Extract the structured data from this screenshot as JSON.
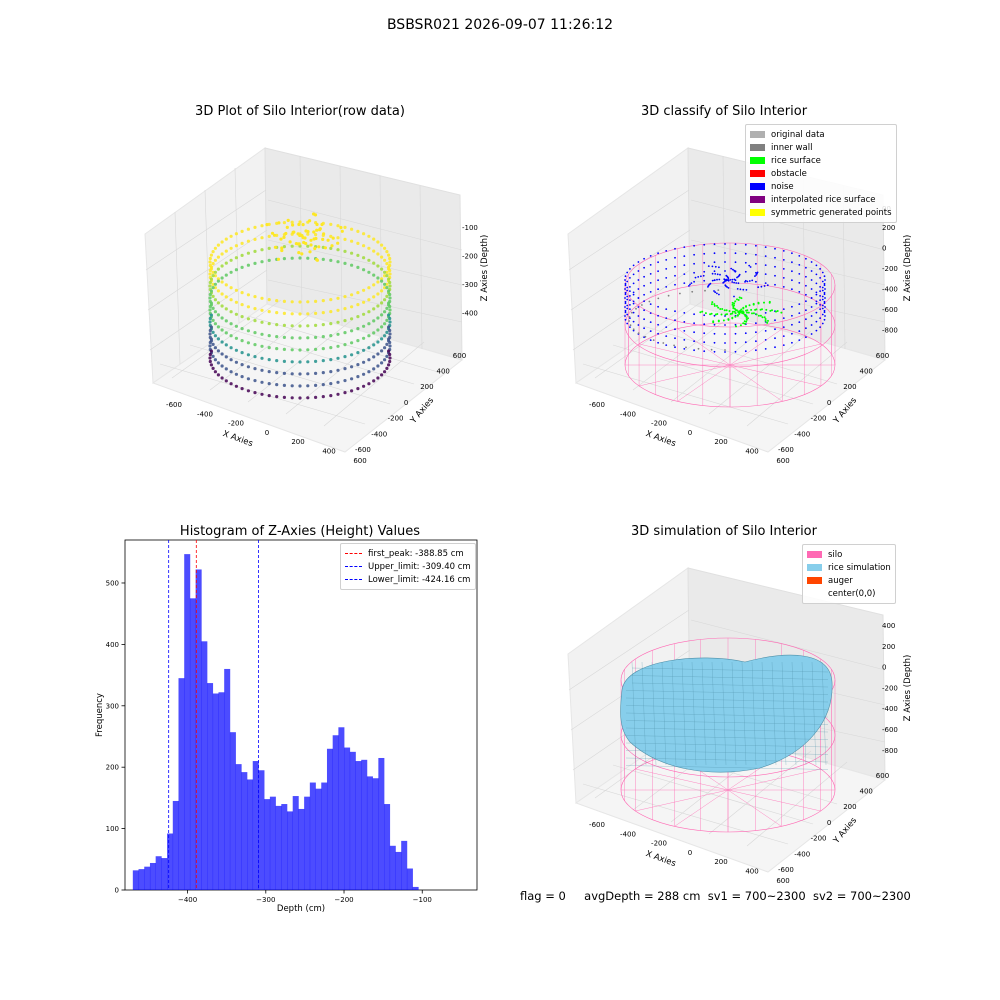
{
  "suptitle": "BSBSR021 2026-09-07 11:26:12",
  "panels": {
    "raw": {
      "title": "3D Plot of Silo Interior(row data)",
      "xlabel": "X Axies",
      "ylabel": "Y Axies",
      "zlabel": "Z Axies (Depth)",
      "xticks": [
        "-600",
        "-400",
        "-200",
        "0",
        "200",
        "400",
        "600"
      ],
      "yticks": [
        "-600",
        "-400",
        "-200",
        "0",
        "200",
        "400",
        "600"
      ],
      "zticks": [
        "-100",
        "-200",
        "-300",
        "-400"
      ]
    },
    "classify": {
      "title": "3D classify of Silo Interior",
      "xlabel": "X Axies",
      "ylabel": "Y Axies",
      "zlabel": "Z Axies (Depth)",
      "xticks": [
        "-600",
        "-400",
        "-200",
        "0",
        "200",
        "400",
        "600"
      ],
      "yticks": [
        "-600",
        "-400",
        "-200",
        "0",
        "200",
        "400",
        "600"
      ],
      "zticks": [
        "200",
        "0",
        "-200",
        "-400",
        "-600",
        "-800"
      ],
      "zticks_top_partial": "00",
      "legend": [
        {
          "label": "original data",
          "color": "#b0b0b0"
        },
        {
          "label": "inner wall",
          "color": "#808080"
        },
        {
          "label": "rice surface",
          "color": "#00ff00"
        },
        {
          "label": "obstacle",
          "color": "#ff0000"
        },
        {
          "label": "noise",
          "color": "#0000ff"
        },
        {
          "label": "interpolated rice surface",
          "color": "#800080"
        },
        {
          "label": "symmetric generated points",
          "color": "#ffff00"
        }
      ]
    },
    "histogram": {
      "title": "Histogram of Z-Axies (Height) Values",
      "legend": [
        {
          "label": "first_peak: -388.85 cm",
          "color": "#ff0000"
        },
        {
          "label": "Upper_limit: -309.40 cm",
          "color": "#0000ff"
        },
        {
          "label": "Lower_limit: -424.16 cm",
          "color": "#0000ff"
        }
      ]
    },
    "simulation": {
      "title": "3D simulation of Silo Interior",
      "xlabel": "X Axies",
      "ylabel": "Y Axies",
      "zlabel": "Z Axies (Depth)",
      "xticks": [
        "-600",
        "-400",
        "-200",
        "0",
        "200",
        "400",
        "600"
      ],
      "yticks": [
        "-600",
        "-400",
        "-200",
        "0",
        "200",
        "400",
        "600"
      ],
      "zticks": [
        "400",
        "200",
        "0",
        "-200",
        "-400",
        "-600",
        "-800"
      ],
      "legend": [
        {
          "label": "silo",
          "color": "#ff69b4"
        },
        {
          "label": "rice simulation",
          "color": "#87ceeb"
        },
        {
          "label": "auger",
          "color": "#ff4500"
        },
        {
          "label": "center(0,0)",
          "color": ""
        }
      ]
    }
  },
  "status": {
    "flag": "flag = 0",
    "avg_depth": "avgDepth = 288 cm",
    "sv1": "sv1 = 700~2300",
    "sv2": "sv2 = 700~2300"
  },
  "chart_data": [
    {
      "type": "histogram",
      "title": "Histogram of Z-Axies (Height) Values",
      "xlabel": "Depth (cm)",
      "ylabel": "Frequency",
      "xlim": [
        -480,
        -30
      ],
      "ylim": [
        0,
        570
      ],
      "xticks": [
        -400,
        -300,
        -200,
        -100
      ],
      "yticks": [
        0,
        100,
        200,
        300,
        400,
        500
      ],
      "bar_color": "#0000ff",
      "bin_start": -470,
      "bin_width": 7.3,
      "values": [
        32,
        34,
        38,
        44,
        55,
        52,
        92,
        145,
        345,
        547,
        475,
        522,
        405,
        337,
        320,
        322,
        360,
        257,
        205,
        192,
        180,
        210,
        195,
        148,
        152,
        137,
        140,
        128,
        153,
        132,
        152,
        175,
        165,
        175,
        230,
        252,
        265,
        232,
        225,
        210,
        212,
        185,
        182,
        215,
        140,
        72,
        62,
        80,
        35,
        5
      ],
      "vlines": [
        {
          "name": "first_peak: -388.85 cm",
          "x": -388.85,
          "color": "#ff0000"
        },
        {
          "name": "Upper_limit: -309.40 cm",
          "x": -309.4,
          "color": "#0000ff"
        },
        {
          "name": "Lower_limit: -424.16 cm",
          "x": -424.16,
          "color": "#0000ff"
        }
      ],
      "legend_position": "top-right"
    }
  ]
}
